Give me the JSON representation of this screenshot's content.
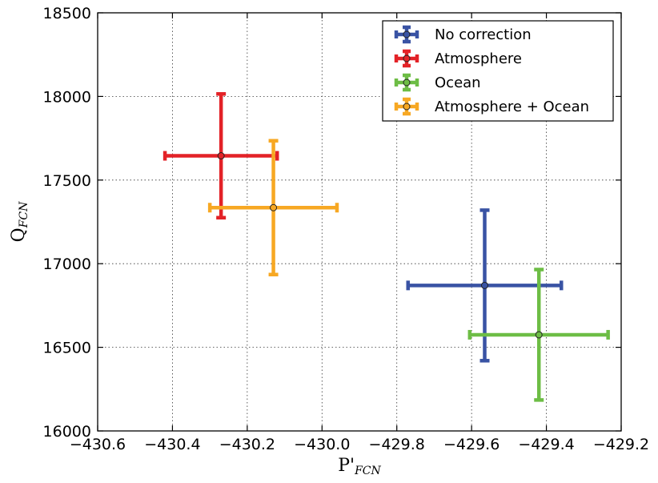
{
  "chart_data": {
    "type": "scatter",
    "title": "",
    "xlabel": {
      "main": "P'",
      "sub": "FCN"
    },
    "ylabel": {
      "main": "Q",
      "sub": "FCN"
    },
    "xlim": [
      -430.6,
      -429.2
    ],
    "ylim": [
      16000,
      18500
    ],
    "xticks": [
      -430.6,
      -430.4,
      -430.2,
      -430.0,
      -429.8,
      -429.6,
      -429.4,
      -429.2
    ],
    "xtick_labels": [
      "−430.6",
      "−430.4",
      "−430.2",
      "−430.0",
      "−429.8",
      "−429.6",
      "−429.4",
      "−429.2"
    ],
    "yticks": [
      16000,
      16500,
      17000,
      17500,
      18000,
      18500
    ],
    "ytick_labels": [
      "16000",
      "16500",
      "17000",
      "17500",
      "18000",
      "18500"
    ],
    "grid": true,
    "legend_position": "top-right",
    "series": [
      {
        "name": "No correction",
        "color": "#3953a4",
        "x": -429.565,
        "y": 16870,
        "x_err": 0.205,
        "y_err": 450
      },
      {
        "name": "Atmosphere",
        "color": "#e32227",
        "x": -430.27,
        "y": 17645,
        "x_err": 0.15,
        "y_err": 370
      },
      {
        "name": "Ocean",
        "color": "#6dbd45",
        "x": -429.42,
        "y": 16575,
        "x_err": 0.185,
        "y_err": 390
      },
      {
        "name": "Atmosphere + Ocean",
        "color": "#f7a823",
        "x": -430.13,
        "y": 17335,
        "x_err": 0.17,
        "y_err": 400
      }
    ]
  }
}
